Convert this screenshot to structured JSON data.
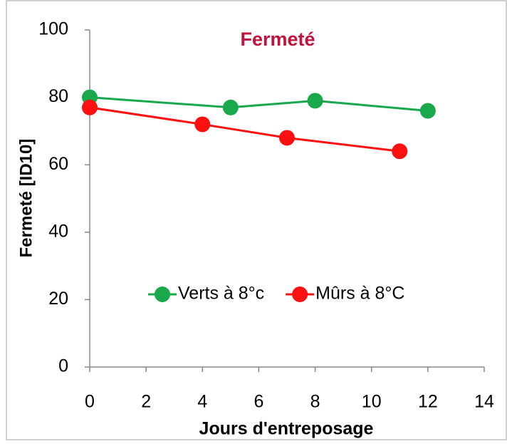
{
  "chart_data": {
    "type": "line",
    "title": "Fermeté",
    "x_label": "Jours d'entreposage",
    "y_label": "Fermeté [ID10]",
    "series": [
      {
        "name": "Verts à 8°c",
        "color": "#1aa84c",
        "x": [
          0,
          5,
          8,
          12
        ],
        "values": [
          80,
          77,
          79,
          76
        ]
      },
      {
        "name": "Mûrs à 8°C",
        "color": "#ff1010",
        "x": [
          0,
          4,
          7,
          11
        ],
        "values": [
          77,
          72,
          68,
          64
        ]
      }
    ],
    "xlim": [
      0,
      14
    ],
    "xticks": [
      0,
      2,
      4,
      6,
      8,
      10,
      12,
      14
    ],
    "ylim": [
      0,
      100
    ],
    "yticks": [
      0,
      20,
      40,
      60,
      80,
      100
    ],
    "grid": false,
    "legend": "center",
    "title_color": "#c0143c"
  }
}
